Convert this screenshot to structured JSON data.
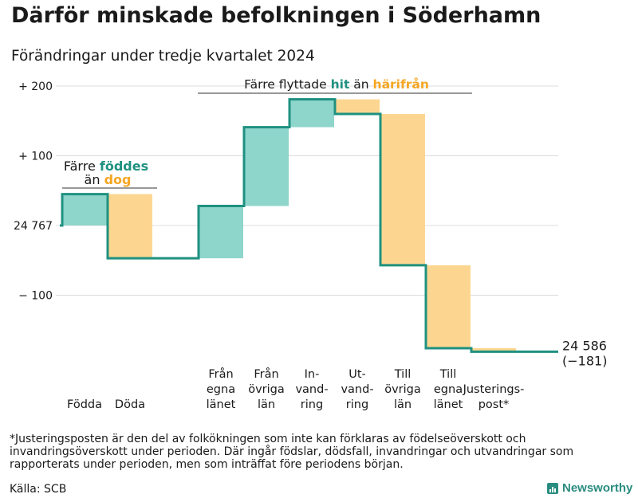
{
  "title": "Därför minskade befolkningen i Söderhamn",
  "subtitle": "Förändringar under tredje kvartalet 2024",
  "footnote": "*Justeringsposten är den del av folkökningen som inte kan förklaras av födelseöverskott och invandringsöverskott under perioden. Där ingår födslar, dödsfall, invandringar och utvandringar som rapporterats under perioden, men som inträffat före periodens början.",
  "source": "Källa: SCB",
  "brand": "Newsworthy",
  "colors": {
    "inflow": "#8ed5cb",
    "outflow": "#fcd691",
    "line": "#1f9180",
    "accent_orange": "#f5a623",
    "accent_teal": "#1f9180",
    "grid": "#dcdcdc"
  },
  "annotations": {
    "births": {
      "pre": "Färre ",
      "word1": "föddes",
      "line2pre": "än ",
      "word2": "dog"
    },
    "moves": {
      "pre": "Färre flyttade ",
      "word1": "hit",
      "mid": " än ",
      "word2": "härifrån"
    }
  },
  "chart_data": {
    "type": "waterfall",
    "start_value": 24767,
    "end_value": 24586,
    "end_label": "24 586",
    "change_label": "(−181)",
    "yticks": [
      {
        "value": 200,
        "label": "+ 200"
      },
      {
        "value": 100,
        "label": "+ 100"
      },
      {
        "value": 0,
        "label": "24 767"
      },
      {
        "value": -100,
        "label": "− 100"
      }
    ],
    "ylim": [
      -185,
      215
    ],
    "grid": true,
    "steps": [
      {
        "label": [
          "Födda"
        ],
        "change": 45,
        "kind": "inflow"
      },
      {
        "label": [
          "Döda"
        ],
        "change": -92,
        "kind": "outflow"
      },
      {
        "label": [
          "Från",
          "egna",
          "länet"
        ],
        "change": 75,
        "kind": "inflow"
      },
      {
        "label": [
          "Från",
          "övriga",
          "län"
        ],
        "change": 113,
        "kind": "inflow"
      },
      {
        "label": [
          "In-",
          "vand-",
          "ring"
        ],
        "change": 40,
        "kind": "inflow"
      },
      {
        "label": [
          "Ut-",
          "vand-",
          "ring"
        ],
        "change": -21,
        "kind": "outflow"
      },
      {
        "label": [
          "Till",
          "övriga",
          "län"
        ],
        "change": -217,
        "kind": "outflow"
      },
      {
        "label": [
          "Till",
          "egna",
          "länet"
        ],
        "change": -119,
        "kind": "outflow"
      },
      {
        "label": [
          "Justerings-",
          "post*"
        ],
        "change": -5,
        "kind": "outflow"
      }
    ]
  }
}
